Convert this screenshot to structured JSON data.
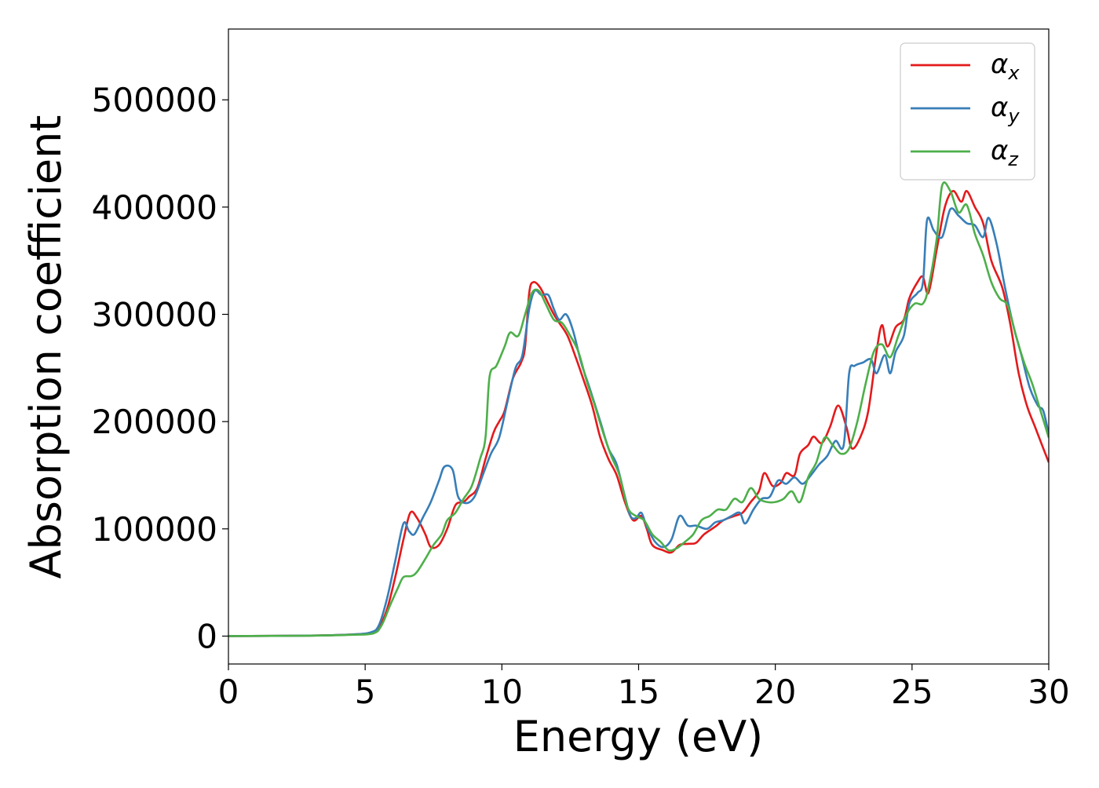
{
  "chart_data": {
    "type": "line",
    "xlabel": "Energy (eV)",
    "ylabel": "Absorption coefficient",
    "xlim": [
      0,
      30
    ],
    "ylim": [
      -26000,
      566000
    ],
    "xticks": [
      0,
      5,
      10,
      15,
      20,
      25,
      30
    ],
    "yticks": [
      0,
      100000,
      200000,
      300000,
      400000,
      500000
    ],
    "xtick_labels": [
      "0",
      "5",
      "10",
      "15",
      "20",
      "25",
      "30"
    ],
    "ytick_labels": [
      "0",
      "100000",
      "200000",
      "300000",
      "400000",
      "500000"
    ],
    "grid": false,
    "legend": {
      "position": "top-right",
      "entries": [
        {
          "base": "α",
          "sub": "x",
          "color": "#e41a1c"
        },
        {
          "base": "α",
          "sub": "y",
          "color": "#377eb8"
        },
        {
          "base": "α",
          "sub": "z",
          "color": "#4daf4a"
        }
      ]
    },
    "series": [
      {
        "name": "αx",
        "color": "#e41a1c",
        "points": [
          [
            0,
            0
          ],
          [
            3,
            500
          ],
          [
            4.5,
            1500
          ],
          [
            5.2,
            3000
          ],
          [
            5.5,
            8000
          ],
          [
            5.8,
            25000
          ],
          [
            6.1,
            55000
          ],
          [
            6.4,
            90000
          ],
          [
            6.65,
            115000
          ],
          [
            6.9,
            110000
          ],
          [
            7.2,
            95000
          ],
          [
            7.4,
            83000
          ],
          [
            7.7,
            85000
          ],
          [
            8.0,
            100000
          ],
          [
            8.3,
            122000
          ],
          [
            8.6,
            125000
          ],
          [
            8.8,
            130000
          ],
          [
            9.1,
            138000
          ],
          [
            9.4,
            165000
          ],
          [
            9.7,
            190000
          ],
          [
            9.9,
            200000
          ],
          [
            10.1,
            210000
          ],
          [
            10.4,
            240000
          ],
          [
            10.7,
            255000
          ],
          [
            10.85,
            270000
          ],
          [
            11.0,
            320000
          ],
          [
            11.15,
            330000
          ],
          [
            11.4,
            325000
          ],
          [
            11.7,
            310000
          ],
          [
            11.9,
            300000
          ],
          [
            12.1,
            292000
          ],
          [
            12.4,
            280000
          ],
          [
            12.7,
            260000
          ],
          [
            13.0,
            238000
          ],
          [
            13.3,
            215000
          ],
          [
            13.6,
            185000
          ],
          [
            13.9,
            165000
          ],
          [
            14.2,
            150000
          ],
          [
            14.5,
            125000
          ],
          [
            14.8,
            108000
          ],
          [
            15.1,
            112000
          ],
          [
            15.3,
            100000
          ],
          [
            15.5,
            85000
          ],
          [
            15.9,
            80000
          ],
          [
            16.2,
            78000
          ],
          [
            16.5,
            85000
          ],
          [
            16.8,
            86000
          ],
          [
            17.1,
            87000
          ],
          [
            17.4,
            95000
          ],
          [
            17.8,
            102000
          ],
          [
            18.1,
            108000
          ],
          [
            18.5,
            112000
          ],
          [
            18.8,
            115000
          ],
          [
            19.1,
            125000
          ],
          [
            19.4,
            135000
          ],
          [
            19.6,
            152000
          ],
          [
            19.9,
            140000
          ],
          [
            20.2,
            143000
          ],
          [
            20.4,
            152000
          ],
          [
            20.7,
            150000
          ],
          [
            20.9,
            170000
          ],
          [
            21.2,
            178000
          ],
          [
            21.4,
            186000
          ],
          [
            21.7,
            180000
          ],
          [
            22.0,
            195000
          ],
          [
            22.3,
            215000
          ],
          [
            22.6,
            195000
          ],
          [
            22.8,
            175000
          ],
          [
            23.1,
            185000
          ],
          [
            23.4,
            210000
          ],
          [
            23.7,
            265000
          ],
          [
            23.9,
            290000
          ],
          [
            24.1,
            270000
          ],
          [
            24.4,
            288000
          ],
          [
            24.7,
            295000
          ],
          [
            24.9,
            315000
          ],
          [
            25.2,
            330000
          ],
          [
            25.4,
            335000
          ],
          [
            25.6,
            320000
          ],
          [
            25.9,
            360000
          ],
          [
            26.2,
            400000
          ],
          [
            26.5,
            415000
          ],
          [
            26.8,
            405000
          ],
          [
            27.0,
            415000
          ],
          [
            27.3,
            400000
          ],
          [
            27.6,
            385000
          ],
          [
            27.9,
            350000
          ],
          [
            28.3,
            325000
          ],
          [
            28.6,
            290000
          ],
          [
            28.9,
            245000
          ],
          [
            29.2,
            215000
          ],
          [
            29.5,
            195000
          ],
          [
            29.8,
            175000
          ],
          [
            30.0,
            162000
          ]
        ]
      },
      {
        "name": "αy",
        "color": "#377eb8",
        "points": [
          [
            0,
            0
          ],
          [
            3,
            500
          ],
          [
            4.5,
            1500
          ],
          [
            5.2,
            3500
          ],
          [
            5.5,
            10000
          ],
          [
            5.8,
            35000
          ],
          [
            6.1,
            70000
          ],
          [
            6.4,
            105000
          ],
          [
            6.6,
            98000
          ],
          [
            6.8,
            95000
          ],
          [
            7.1,
            110000
          ],
          [
            7.4,
            125000
          ],
          [
            7.7,
            145000
          ],
          [
            7.9,
            158000
          ],
          [
            8.2,
            155000
          ],
          [
            8.4,
            130000
          ],
          [
            8.7,
            124000
          ],
          [
            9.0,
            130000
          ],
          [
            9.3,
            150000
          ],
          [
            9.6,
            170000
          ],
          [
            9.9,
            185000
          ],
          [
            10.2,
            218000
          ],
          [
            10.5,
            250000
          ],
          [
            10.75,
            262000
          ],
          [
            11.0,
            305000
          ],
          [
            11.2,
            322000
          ],
          [
            11.45,
            318000
          ],
          [
            11.7,
            318000
          ],
          [
            11.9,
            305000
          ],
          [
            12.1,
            295000
          ],
          [
            12.35,
            300000
          ],
          [
            12.6,
            285000
          ],
          [
            12.9,
            255000
          ],
          [
            13.2,
            232000
          ],
          [
            13.6,
            200000
          ],
          [
            13.9,
            175000
          ],
          [
            14.2,
            160000
          ],
          [
            14.5,
            130000
          ],
          [
            14.7,
            112000
          ],
          [
            14.9,
            110000
          ],
          [
            15.1,
            115000
          ],
          [
            15.3,
            102000
          ],
          [
            15.6,
            88000
          ],
          [
            15.9,
            83000
          ],
          [
            16.2,
            90000
          ],
          [
            16.5,
            112000
          ],
          [
            16.8,
            103000
          ],
          [
            17.1,
            103000
          ],
          [
            17.5,
            100000
          ],
          [
            17.8,
            106000
          ],
          [
            18.1,
            108000
          ],
          [
            18.4,
            112000
          ],
          [
            18.7,
            115000
          ],
          [
            18.9,
            105000
          ],
          [
            19.2,
            118000
          ],
          [
            19.5,
            128000
          ],
          [
            19.8,
            130000
          ],
          [
            20.1,
            145000
          ],
          [
            20.4,
            142000
          ],
          [
            20.7,
            148000
          ],
          [
            21.0,
            142000
          ],
          [
            21.3,
            150000
          ],
          [
            21.6,
            160000
          ],
          [
            21.9,
            168000
          ],
          [
            22.2,
            182000
          ],
          [
            22.5,
            178000
          ],
          [
            22.7,
            245000
          ],
          [
            22.9,
            252000
          ],
          [
            23.2,
            255000
          ],
          [
            23.5,
            258000
          ],
          [
            23.7,
            245000
          ],
          [
            24.0,
            262000
          ],
          [
            24.2,
            245000
          ],
          [
            24.4,
            265000
          ],
          [
            24.7,
            280000
          ],
          [
            24.9,
            310000
          ],
          [
            25.2,
            320000
          ],
          [
            25.4,
            330000
          ],
          [
            25.55,
            388000
          ],
          [
            25.8,
            378000
          ],
          [
            26.1,
            372000
          ],
          [
            26.4,
            398000
          ],
          [
            26.7,
            392000
          ],
          [
            27.0,
            385000
          ],
          [
            27.3,
            383000
          ],
          [
            27.6,
            372000
          ],
          [
            27.8,
            390000
          ],
          [
            28.1,
            365000
          ],
          [
            28.4,
            325000
          ],
          [
            28.7,
            290000
          ],
          [
            29.0,
            262000
          ],
          [
            29.3,
            232000
          ],
          [
            29.6,
            215000
          ],
          [
            29.8,
            210000
          ],
          [
            30.0,
            188000
          ]
        ]
      },
      {
        "name": "αz",
        "color": "#4daf4a",
        "points": [
          [
            0,
            0
          ],
          [
            3,
            400
          ],
          [
            4.5,
            1200
          ],
          [
            5.3,
            2500
          ],
          [
            5.6,
            10000
          ],
          [
            5.9,
            28000
          ],
          [
            6.2,
            45000
          ],
          [
            6.4,
            55000
          ],
          [
            6.7,
            56000
          ],
          [
            6.9,
            60000
          ],
          [
            7.2,
            72000
          ],
          [
            7.5,
            85000
          ],
          [
            7.8,
            95000
          ],
          [
            8.0,
            108000
          ],
          [
            8.3,
            115000
          ],
          [
            8.6,
            128000
          ],
          [
            8.9,
            140000
          ],
          [
            9.2,
            165000
          ],
          [
            9.4,
            185000
          ],
          [
            9.55,
            242000
          ],
          [
            9.8,
            252000
          ],
          [
            10.1,
            270000
          ],
          [
            10.3,
            283000
          ],
          [
            10.6,
            280000
          ],
          [
            10.85,
            300000
          ],
          [
            11.1,
            320000
          ],
          [
            11.35,
            322000
          ],
          [
            11.6,
            310000
          ],
          [
            11.9,
            295000
          ],
          [
            12.2,
            292000
          ],
          [
            12.5,
            280000
          ],
          [
            12.8,
            265000
          ],
          [
            13.1,
            238000
          ],
          [
            13.4,
            215000
          ],
          [
            13.7,
            190000
          ],
          [
            14.0,
            168000
          ],
          [
            14.3,
            150000
          ],
          [
            14.6,
            120000
          ],
          [
            14.9,
            112000
          ],
          [
            15.2,
            108000
          ],
          [
            15.5,
            95000
          ],
          [
            15.8,
            88000
          ],
          [
            16.1,
            80000
          ],
          [
            16.4,
            82000
          ],
          [
            16.7,
            88000
          ],
          [
            17.0,
            95000
          ],
          [
            17.3,
            108000
          ],
          [
            17.6,
            112000
          ],
          [
            17.9,
            118000
          ],
          [
            18.2,
            118000
          ],
          [
            18.5,
            128000
          ],
          [
            18.8,
            125000
          ],
          [
            19.1,
            138000
          ],
          [
            19.4,
            128000
          ],
          [
            19.7,
            125000
          ],
          [
            20.0,
            125000
          ],
          [
            20.3,
            128000
          ],
          [
            20.6,
            135000
          ],
          [
            20.9,
            125000
          ],
          [
            21.2,
            148000
          ],
          [
            21.5,
            162000
          ],
          [
            21.8,
            185000
          ],
          [
            22.1,
            178000
          ],
          [
            22.4,
            170000
          ],
          [
            22.7,
            175000
          ],
          [
            23.0,
            200000
          ],
          [
            23.3,
            235000
          ],
          [
            23.6,
            265000
          ],
          [
            23.9,
            272000
          ],
          [
            24.2,
            260000
          ],
          [
            24.5,
            280000
          ],
          [
            24.8,
            300000
          ],
          [
            25.1,
            310000
          ],
          [
            25.4,
            310000
          ],
          [
            25.6,
            325000
          ],
          [
            25.9,
            370000
          ],
          [
            26.1,
            420000
          ],
          [
            26.4,
            415000
          ],
          [
            26.7,
            395000
          ],
          [
            27.0,
            402000
          ],
          [
            27.3,
            375000
          ],
          [
            27.6,
            355000
          ],
          [
            27.9,
            330000
          ],
          [
            28.2,
            315000
          ],
          [
            28.5,
            308000
          ],
          [
            28.8,
            280000
          ],
          [
            29.1,
            255000
          ],
          [
            29.4,
            235000
          ],
          [
            29.7,
            210000
          ],
          [
            30.0,
            185000
          ]
        ]
      }
    ]
  }
}
